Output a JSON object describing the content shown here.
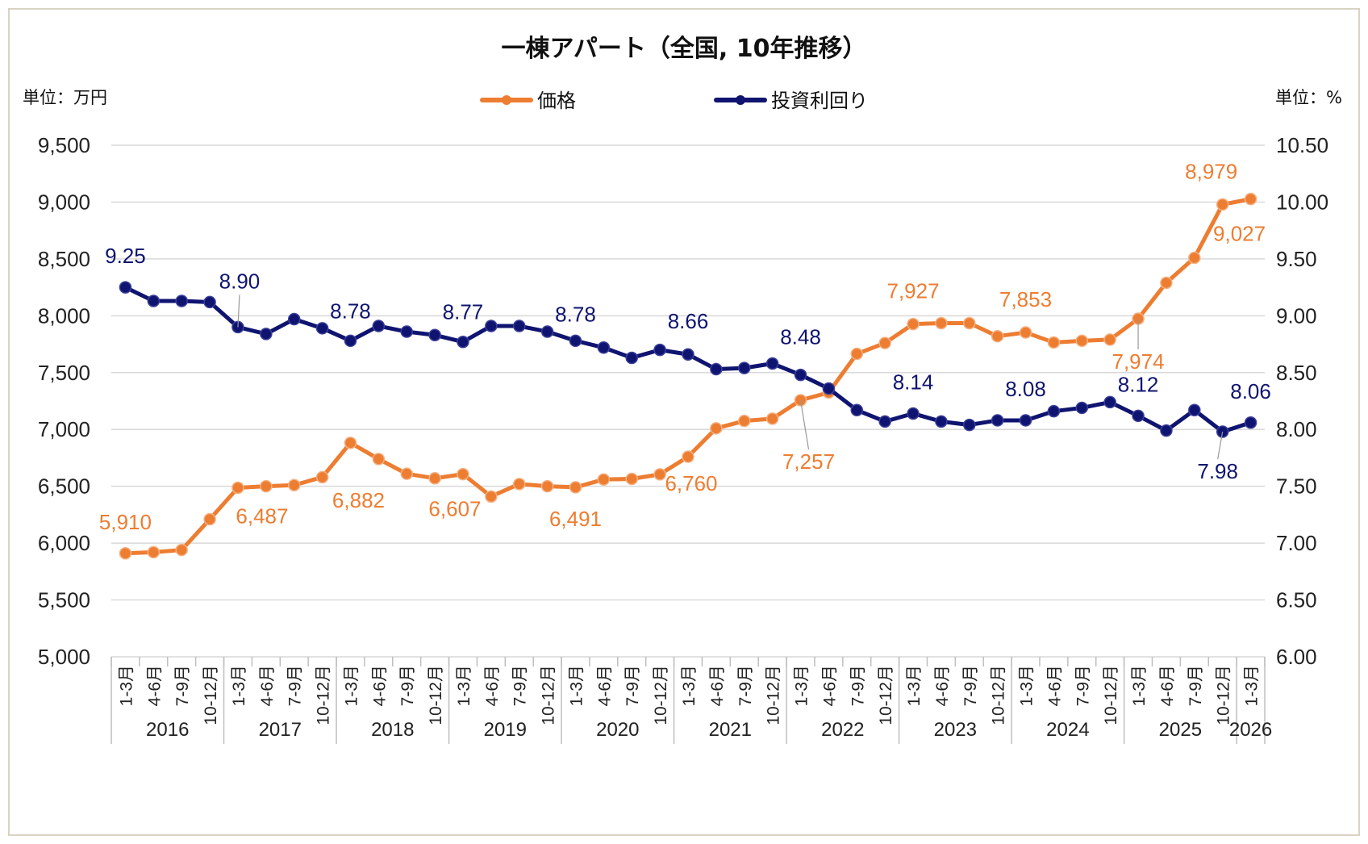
{
  "chart_data": {
    "type": "line",
    "title": "一棟アパート（全国, 10年推移）",
    "left_unit": "単位：万円",
    "right_unit": "単位：%",
    "legend_position": "top-center",
    "grid": true,
    "left_ylim": [
      5000,
      9500
    ],
    "right_ylim": [
      6.0,
      10.5
    ],
    "left_ticks": [
      "5,000",
      "5,500",
      "6,000",
      "6,500",
      "7,000",
      "7,500",
      "8,000",
      "8,500",
      "9,000",
      "9,500"
    ],
    "right_ticks": [
      "6.00",
      "6.50",
      "7.00",
      "7.50",
      "8.00",
      "8.50",
      "9.00",
      "9.50",
      "10.00",
      "10.50"
    ],
    "categories": [
      "1-3月",
      "4-6月",
      "7-9月",
      "10-12月",
      "1-3月",
      "4-6月",
      "7-9月",
      "10-12月",
      "1-3月",
      "4-6月",
      "7-9月",
      "10-12月",
      "1-3月",
      "4-6月",
      "7-9月",
      "10-12月",
      "1-3月",
      "4-6月",
      "7-9月",
      "10-12月",
      "1-3月",
      "4-6月",
      "7-9月",
      "10-12月",
      "1-3月",
      "4-6月",
      "7-9月",
      "10-12月",
      "1-3月",
      "4-6月",
      "7-9月",
      "10-12月",
      "1-3月",
      "4-6月",
      "7-9月",
      "10-12月",
      "1-3月",
      "4-6月",
      "7-9月",
      "10-12月",
      "1-3月"
    ],
    "years": [
      {
        "label": "2016",
        "count": 4
      },
      {
        "label": "2017",
        "count": 4
      },
      {
        "label": "2018",
        "count": 4
      },
      {
        "label": "2019",
        "count": 4
      },
      {
        "label": "2020",
        "count": 4
      },
      {
        "label": "2021",
        "count": 4
      },
      {
        "label": "2022",
        "count": 4
      },
      {
        "label": "2023",
        "count": 4
      },
      {
        "label": "2024",
        "count": 4
      },
      {
        "label": "2025",
        "count": 4
      },
      {
        "label": "2026",
        "count": 1
      }
    ],
    "series": [
      {
        "name": "価格",
        "axis": "left",
        "color": "#ed7d31",
        "values": [
          5910,
          5920,
          5940,
          6210,
          6487,
          6500,
          6510,
          6580,
          6882,
          6740,
          6610,
          6570,
          6607,
          6410,
          6520,
          6500,
          6491,
          6560,
          6565,
          6605,
          6760,
          7010,
          7075,
          7095,
          7257,
          7325,
          7665,
          7760,
          7927,
          7935,
          7935,
          7820,
          7853,
          7765,
          7780,
          7790,
          7974,
          8290,
          8510,
          8979,
          9027
        ],
        "labels": [
          {
            "index": 0,
            "text": "5,910"
          },
          {
            "index": 4,
            "text": "6,487"
          },
          {
            "index": 8,
            "text": "6,882"
          },
          {
            "index": 12,
            "text": "6,607"
          },
          {
            "index": 16,
            "text": "6,491"
          },
          {
            "index": 20,
            "text": "6,760"
          },
          {
            "index": 24,
            "text": "7,257"
          },
          {
            "index": 28,
            "text": "7,927"
          },
          {
            "index": 32,
            "text": "7,853"
          },
          {
            "index": 36,
            "text": "7,974"
          },
          {
            "index": 39,
            "text": "8,979"
          },
          {
            "index": 40,
            "text": "9,027"
          }
        ]
      },
      {
        "name": "投資利回り",
        "axis": "right",
        "color": "#0f1470",
        "values": [
          9.25,
          9.13,
          9.13,
          9.12,
          8.9,
          8.84,
          8.97,
          8.89,
          8.78,
          8.91,
          8.86,
          8.83,
          8.77,
          8.91,
          8.91,
          8.86,
          8.78,
          8.72,
          8.63,
          8.7,
          8.66,
          8.53,
          8.54,
          8.58,
          8.48,
          8.36,
          8.17,
          8.07,
          8.14,
          8.07,
          8.04,
          8.08,
          8.08,
          8.16,
          8.19,
          8.24,
          8.12,
          7.99,
          8.17,
          7.98,
          8.06
        ],
        "labels": [
          {
            "index": 0,
            "text": "9.25"
          },
          {
            "index": 4,
            "text": "8.90"
          },
          {
            "index": 8,
            "text": "8.78"
          },
          {
            "index": 12,
            "text": "8.77"
          },
          {
            "index": 16,
            "text": "8.78"
          },
          {
            "index": 20,
            "text": "8.66"
          },
          {
            "index": 24,
            "text": "8.48"
          },
          {
            "index": 28,
            "text": "8.14"
          },
          {
            "index": 32,
            "text": "8.08"
          },
          {
            "index": 36,
            "text": "8.12"
          },
          {
            "index": 39,
            "text": "7.98"
          },
          {
            "index": 40,
            "text": "8.06"
          }
        ]
      }
    ]
  }
}
